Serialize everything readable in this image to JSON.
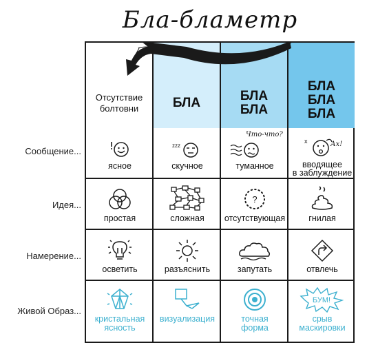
{
  "title": "Бла-бламетр",
  "colors": {
    "col2_bg": "#d4eefb",
    "col3_bg": "#a6dbf3",
    "col4_bg": "#74c6ec",
    "accent_blue": "#3cb0cf",
    "ink": "#1a1a1a"
  },
  "columns": [
    {
      "label_line1": "Отсутствие",
      "label_line2": "болтовни"
    },
    {
      "label": "БЛА"
    },
    {
      "label_line1": "БЛА",
      "label_line2": "БЛА"
    },
    {
      "label_line1": "БЛА",
      "label_line2": "БЛА",
      "label_line3": "БЛА"
    }
  ],
  "rows": [
    {
      "label": "Сообщение...",
      "cells": [
        {
          "icon": "clear-face-icon",
          "caption": "ясное"
        },
        {
          "icon": "bored-face-icon",
          "caption": "скучное"
        },
        {
          "icon": "foggy-face-icon",
          "caption": "туманное",
          "speech": "Что-что?"
        },
        {
          "icon": "misleading-face-icon",
          "caption_line1": "вводящее",
          "caption_line2": "в заблуждение",
          "speech": "Ах!"
        }
      ]
    },
    {
      "label": "Идея...",
      "cells": [
        {
          "icon": "venn-circles-icon",
          "caption": "простая"
        },
        {
          "icon": "network-icon",
          "caption": "сложная"
        },
        {
          "icon": "dotted-question-icon",
          "caption": "отсутствующая",
          "mark": "?"
        },
        {
          "icon": "rotten-pile-icon",
          "caption": "гнилая"
        }
      ]
    },
    {
      "label": "Намерение...",
      "cells": [
        {
          "icon": "light-bulb-icon",
          "caption": "осветить"
        },
        {
          "icon": "sun-icon",
          "caption": "разъяснить"
        },
        {
          "icon": "cloud-icon",
          "caption": "запутать"
        },
        {
          "icon": "turn-sign-icon",
          "caption": "отвлечь"
        }
      ]
    },
    {
      "label": "Живой Образ...",
      "cells": [
        {
          "icon": "crystal-icon",
          "caption_line1": "кристальная",
          "caption_line2": "ясность"
        },
        {
          "icon": "visualization-icon",
          "caption": "визуализация"
        },
        {
          "icon": "target-icon",
          "caption_line1": "точная",
          "caption_line2": "форма"
        },
        {
          "icon": "boom-icon",
          "caption_line1": "срыв",
          "caption_line2": "маскировки",
          "burst": "БУМ!"
        }
      ]
    }
  ]
}
